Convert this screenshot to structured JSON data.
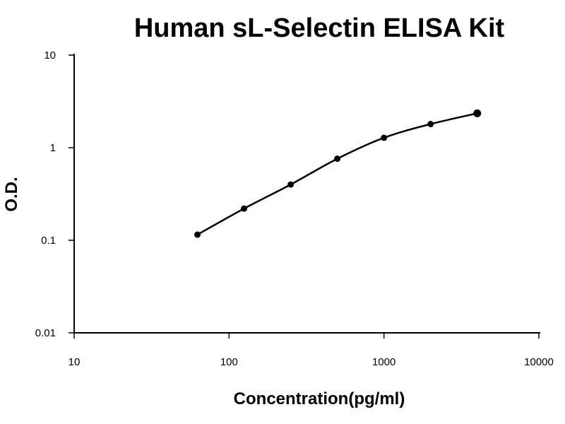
{
  "chart_data": {
    "type": "line",
    "title": "Human sL-Selectin ELISA Kit",
    "xlabel": "Concentration(pg/ml)",
    "ylabel": "O.D.",
    "xscale": "log",
    "yscale": "log",
    "xlim": [
      10,
      10000
    ],
    "ylim": [
      0.01,
      10
    ],
    "x_ticks": [
      10,
      100,
      1000,
      10000
    ],
    "y_ticks": [
      0.01,
      0.1,
      1,
      10
    ],
    "x_tick_labels": [
      "10",
      "100",
      "1000",
      "10000"
    ],
    "y_tick_labels": [
      "0.01",
      "0.1",
      "1",
      "10"
    ],
    "grid": false,
    "legend": "none",
    "series": [
      {
        "x": [
          62.5,
          125,
          250,
          500,
          1000,
          2000,
          4000
        ],
        "y": [
          0.115,
          0.22,
          0.4,
          0.76,
          1.28,
          1.8,
          2.35
        ]
      }
    ],
    "colors": {
      "line": "#000000",
      "marker": "#000000",
      "axis": "#000000"
    }
  }
}
